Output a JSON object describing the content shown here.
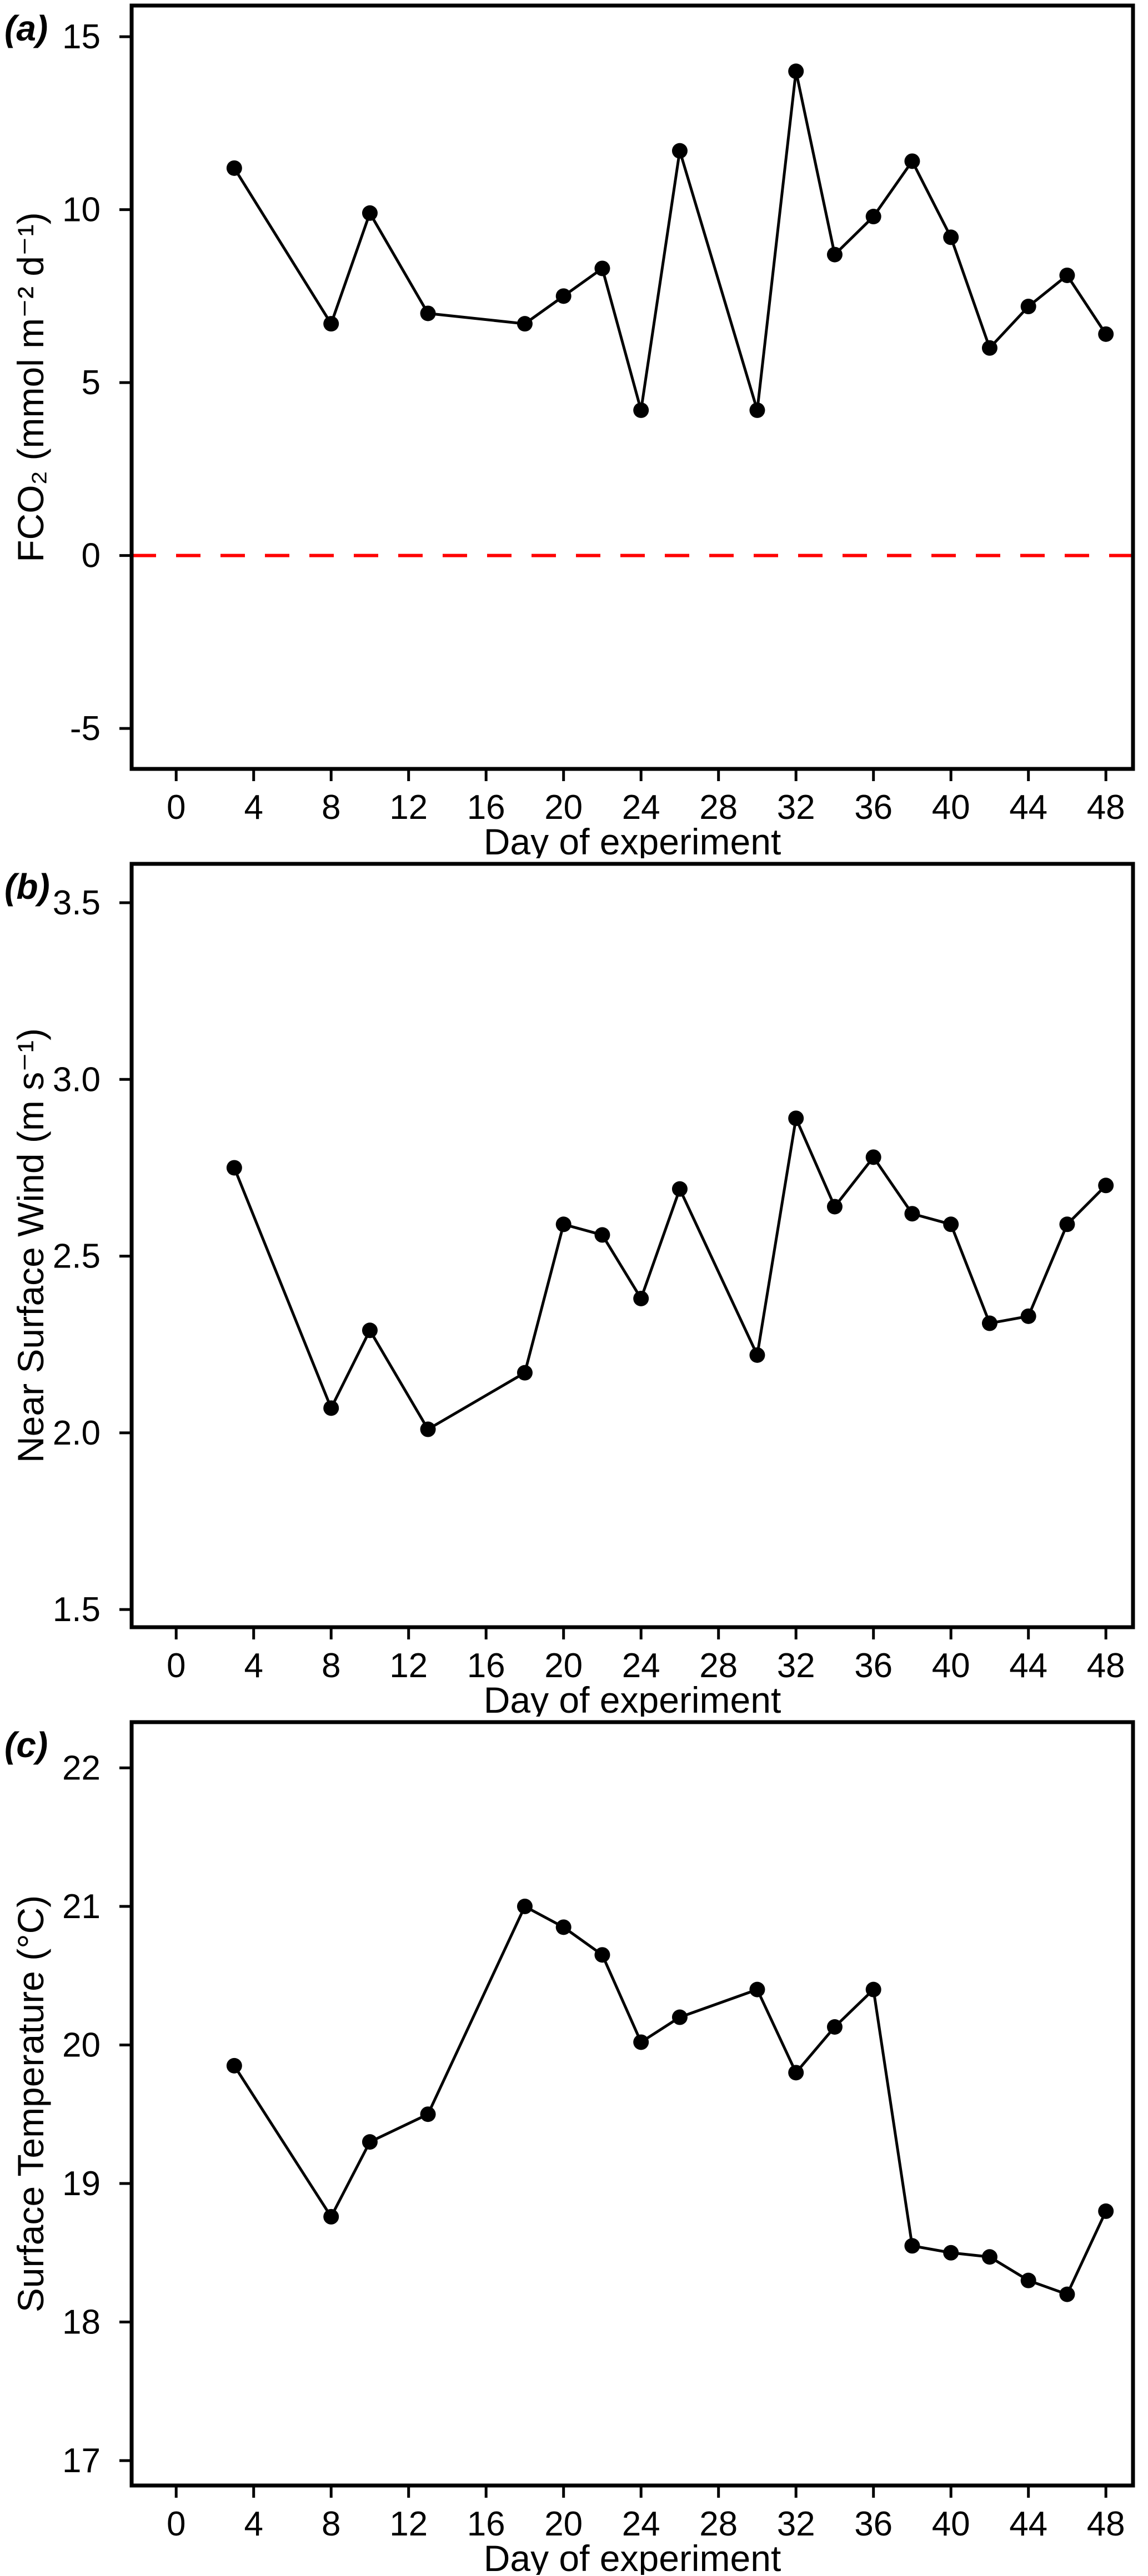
{
  "figure": {
    "background": "#ffffff",
    "axis_color": "#000000",
    "series_color": "#000000",
    "marker_color": "#000000"
  },
  "chart_data": [
    {
      "type": "line",
      "panel_label": "(a)",
      "xlabel": "Day of experiment",
      "ylabel": "FCO₂ (mmol  m⁻²  d⁻¹)",
      "x": [
        3,
        8,
        10,
        13,
        18,
        20,
        22,
        24,
        26,
        30,
        32,
        34,
        36,
        38,
        40,
        42,
        44,
        46,
        48
      ],
      "y": [
        11.2,
        6.7,
        9.9,
        7.0,
        6.7,
        7.5,
        8.3,
        4.2,
        11.7,
        4.2,
        14.0,
        8.7,
        9.8,
        11.4,
        9.2,
        6.0,
        7.2,
        8.1,
        6.4
      ],
      "xticks": [
        0,
        4,
        8,
        12,
        16,
        20,
        24,
        28,
        32,
        36,
        40,
        44,
        48
      ],
      "xtick_labels": [
        "0",
        "4",
        "8",
        "12",
        "16",
        "20",
        "24",
        "28",
        "32",
        "36",
        "40",
        "44",
        "48"
      ],
      "yticks": [
        -5,
        0,
        5,
        10,
        15
      ],
      "ytick_labels": [
        "-5",
        "0",
        "5",
        "10",
        "15"
      ],
      "xlim": [
        -2.3,
        49.4
      ],
      "ylim": [
        -6.17,
        15.9
      ],
      "grid": false,
      "legend": null,
      "line_color": "#000000",
      "marker": "circle",
      "reference_line": {
        "y": 0,
        "color": "#ff0000",
        "style": "dashed"
      }
    },
    {
      "type": "line",
      "panel_label": "(b)",
      "xlabel": "Day of experiment",
      "ylabel": "Near Surface Wind (m  s⁻¹)",
      "x": [
        3,
        8,
        10,
        13,
        18,
        20,
        22,
        24,
        26,
        30,
        32,
        34,
        36,
        38,
        40,
        42,
        44,
        46,
        48
      ],
      "y": [
        2.75,
        2.07,
        2.29,
        2.01,
        2.17,
        2.59,
        2.56,
        2.38,
        2.69,
        2.22,
        2.89,
        2.64,
        2.78,
        2.62,
        2.59,
        2.31,
        2.33,
        2.59,
        2.7
      ],
      "xticks": [
        0,
        4,
        8,
        12,
        16,
        20,
        24,
        28,
        32,
        36,
        40,
        44,
        48
      ],
      "xtick_labels": [
        "0",
        "4",
        "8",
        "12",
        "16",
        "20",
        "24",
        "28",
        "32",
        "36",
        "40",
        "44",
        "48"
      ],
      "yticks": [
        1.5,
        2.0,
        2.5,
        3.0,
        3.5
      ],
      "ytick_labels": [
        "1.5",
        "2.0",
        "2.5",
        "3.0",
        "3.5"
      ],
      "xlim": [
        -2.3,
        49.4
      ],
      "ylim": [
        1.45,
        3.61
      ],
      "grid": false,
      "legend": null,
      "line_color": "#000000",
      "marker": "circle",
      "reference_line": null
    },
    {
      "type": "line",
      "panel_label": "(c)",
      "xlabel": "Day of experiment",
      "ylabel": "Surface Temperature (°C)",
      "x": [
        3,
        8,
        10,
        13,
        18,
        20,
        22,
        24,
        26,
        30,
        32,
        34,
        36,
        38,
        40,
        42,
        44,
        46,
        48
      ],
      "y": [
        19.85,
        18.76,
        19.3,
        19.5,
        21.0,
        20.85,
        20.65,
        20.02,
        20.2,
        20.4,
        19.8,
        20.13,
        20.4,
        18.55,
        18.5,
        18.47,
        18.3,
        18.2,
        18.8
      ],
      "xticks": [
        0,
        4,
        8,
        12,
        16,
        20,
        24,
        28,
        32,
        36,
        40,
        44,
        48
      ],
      "xtick_labels": [
        "0",
        "4",
        "8",
        "12",
        "16",
        "20",
        "24",
        "28",
        "32",
        "36",
        "40",
        "44",
        "48"
      ],
      "yticks": [
        17,
        18,
        19,
        20,
        21,
        22
      ],
      "ytick_labels": [
        "17",
        "18",
        "19",
        "20",
        "21",
        "22"
      ],
      "xlim": [
        -2.3,
        49.4
      ],
      "ylim": [
        16.82,
        22.33
      ],
      "grid": false,
      "legend": null,
      "line_color": "#000000",
      "marker": "circle",
      "reference_line": null
    }
  ]
}
